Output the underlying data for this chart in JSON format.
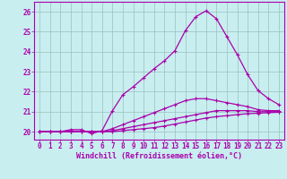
{
  "xlabel": "Windchill (Refroidissement éolien,°C)",
  "bg_color": "#c8eef0",
  "line_color": "#aa00aa",
  "grid_color": "#9bbfbf",
  "xlim": [
    -0.5,
    23.5
  ],
  "ylim": [
    19.6,
    26.5
  ],
  "yticks": [
    20,
    21,
    22,
    23,
    24,
    25,
    26
  ],
  "xticks": [
    0,
    1,
    2,
    3,
    4,
    5,
    6,
    7,
    8,
    9,
    10,
    11,
    12,
    13,
    14,
    15,
    16,
    17,
    18,
    19,
    20,
    21,
    22,
    23
  ],
  "curves": [
    [
      20.0,
      20.0,
      20.0,
      20.1,
      20.1,
      19.9,
      20.05,
      21.05,
      21.85,
      22.25,
      22.7,
      23.15,
      23.55,
      24.05,
      25.05,
      25.75,
      26.05,
      25.65,
      24.75,
      23.85,
      22.85,
      22.05,
      21.65,
      21.35
    ],
    [
      20.0,
      20.0,
      20.0,
      20.0,
      20.0,
      20.0,
      20.0,
      20.15,
      20.35,
      20.55,
      20.75,
      20.95,
      21.15,
      21.35,
      21.55,
      21.65,
      21.65,
      21.55,
      21.45,
      21.35,
      21.25,
      21.1,
      21.05,
      21.05
    ],
    [
      20.0,
      20.0,
      20.0,
      20.0,
      20.0,
      20.0,
      20.0,
      20.05,
      20.15,
      20.25,
      20.35,
      20.45,
      20.55,
      20.65,
      20.75,
      20.85,
      20.95,
      21.05,
      21.05,
      21.05,
      21.05,
      21.0,
      21.0,
      21.0
    ],
    [
      20.0,
      20.0,
      20.0,
      20.0,
      20.0,
      20.0,
      20.0,
      20.0,
      20.05,
      20.1,
      20.15,
      20.2,
      20.28,
      20.38,
      20.48,
      20.58,
      20.68,
      20.75,
      20.8,
      20.85,
      20.9,
      20.92,
      20.95,
      20.97
    ]
  ],
  "marker": "+",
  "markersize": 3,
  "linewidth": 0.9,
  "tick_fontsize": 5.5,
  "xlabel_fontsize": 6.0
}
